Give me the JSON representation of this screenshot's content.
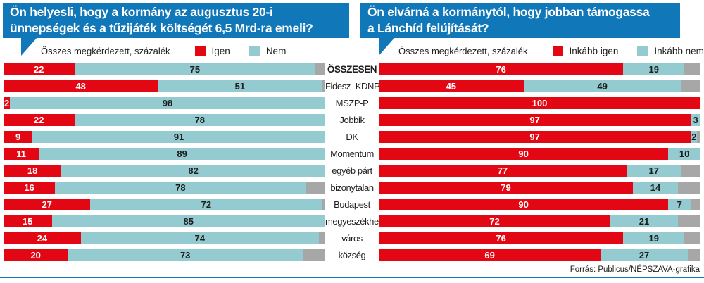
{
  "colors": {
    "blue": "#1077b9",
    "red": "#e30613",
    "teal": "#93cbd1",
    "gray": "#a7a7a7",
    "text": "#1d1d1b"
  },
  "source": "Forrás: Publicus/NÉPSZAVA-grafika",
  "categories": [
    "ÖSSZESEN",
    "Fidesz–KDNP",
    "MSZP-P",
    "Jobbik",
    "DK",
    "Momentum",
    "egyéb párt",
    "bizonytalan",
    "Budapest",
    "megyeszékhely",
    "város",
    "község"
  ],
  "left": {
    "title_line1": "Ön helyesli, hogy a kormány az augusztus 20-i",
    "title_line2": "ünnepségek és a tűzijáték költségét 6,5 Mrd-ra emeli?",
    "legend_note": "Összes megkérdezett, százalék",
    "legend_yes": "Igen",
    "legend_no": "Nem"
  },
  "right": {
    "title_line1": "Ön elvárná a kormánytól, hogy jobban támogassa",
    "title_line2": "a Lánchíd felújítását?",
    "legend_note": "Összes megkérdezett, százalék",
    "legend_yes": "Inkább igen",
    "legend_no": "Inkább nem"
  },
  "chart_data": [
    {
      "type": "bar",
      "orientation": "horizontal",
      "stacked": true,
      "unit": "percent",
      "xlim": [
        0,
        100
      ],
      "title": "Ön helyesli, hogy a kormány az augusztus 20-i ünnepségek és a tűzijáték költségét 6,5 Mrd-ra emeli?",
      "categories": [
        "ÖSSZESEN",
        "Fidesz–KDNP",
        "MSZP-P",
        "Jobbik",
        "DK",
        "Momentum",
        "egyéb párt",
        "bizonytalan",
        "Budapest",
        "megyeszékhely",
        "város",
        "község"
      ],
      "series": [
        {
          "name": "Igen",
          "color": "#e30613",
          "values": [
            22,
            48,
            2,
            22,
            9,
            11,
            18,
            16,
            27,
            15,
            24,
            20
          ]
        },
        {
          "name": "Nem",
          "color": "#93cbd1",
          "values": [
            75,
            51,
            98,
            78,
            91,
            89,
            82,
            78,
            72,
            85,
            74,
            73
          ]
        },
        {
          "name": "remainder-unlabeled",
          "color": "#a7a7a7",
          "values": [
            3,
            1,
            0,
            0,
            0,
            0,
            0,
            6,
            1,
            0,
            2,
            7
          ]
        }
      ]
    },
    {
      "type": "bar",
      "orientation": "horizontal",
      "stacked": true,
      "unit": "percent",
      "xlim": [
        0,
        100
      ],
      "title": "Ön elvárná a kormánytól, hogy jobban támogassa a Lánchíd felújítását?",
      "categories": [
        "ÖSSZESEN",
        "Fidesz–KDNP",
        "MSZP-P",
        "Jobbik",
        "DK",
        "Momentum",
        "egyéb párt",
        "bizonytalan",
        "Budapest",
        "megyeszékhely",
        "város",
        "község"
      ],
      "series": [
        {
          "name": "Inkább igen",
          "color": "#e30613",
          "values": [
            76,
            45,
            100,
            97,
            97,
            90,
            77,
            79,
            90,
            72,
            76,
            69
          ]
        },
        {
          "name": "Inkább nem",
          "color": "#93cbd1",
          "values": [
            19,
            49,
            0,
            3,
            2,
            10,
            17,
            14,
            7,
            21,
            19,
            27
          ]
        },
        {
          "name": "remainder-unlabeled",
          "color": "#a7a7a7",
          "values": [
            5,
            6,
            0,
            0,
            1,
            0,
            6,
            7,
            3,
            7,
            5,
            4
          ]
        }
      ]
    }
  ]
}
